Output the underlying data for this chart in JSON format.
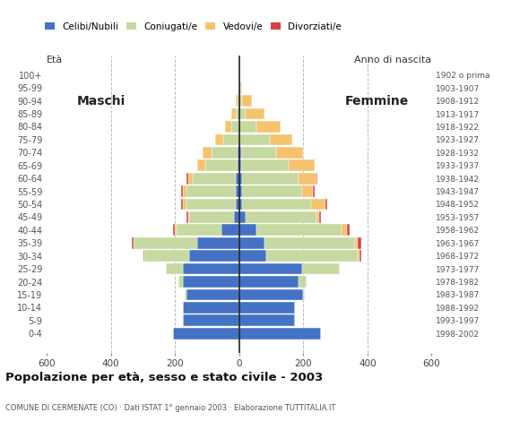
{
  "age_groups": [
    "0-4",
    "5-9",
    "10-14",
    "15-19",
    "20-24",
    "25-29",
    "30-34",
    "35-39",
    "40-44",
    "45-49",
    "50-54",
    "55-59",
    "60-64",
    "65-69",
    "70-74",
    "75-79",
    "80-84",
    "85-89",
    "90-94",
    "95-99",
    "100+"
  ],
  "birth_years": [
    "1998-2002",
    "1993-1997",
    "1988-1992",
    "1983-1987",
    "1978-1982",
    "1973-1977",
    "1968-1972",
    "1963-1967",
    "1958-1962",
    "1953-1957",
    "1948-1952",
    "1943-1947",
    "1938-1942",
    "1933-1937",
    "1928-1932",
    "1923-1927",
    "1918-1922",
    "1913-1917",
    "1908-1912",
    "1903-1907",
    "1902 o prima"
  ],
  "males": {
    "celibe": [
      205,
      175,
      175,
      165,
      175,
      175,
      155,
      130,
      55,
      15,
      10,
      10,
      10,
      5,
      5,
      0,
      0,
      0,
      0,
      0,
      0
    ],
    "coniugato": [
      0,
      0,
      0,
      5,
      15,
      55,
      140,
      200,
      140,
      140,
      155,
      155,
      135,
      100,
      80,
      50,
      25,
      10,
      5,
      0,
      0
    ],
    "vedovo": [
      0,
      0,
      0,
      0,
      0,
      0,
      0,
      0,
      5,
      5,
      10,
      10,
      15,
      25,
      30,
      25,
      20,
      15,
      5,
      0,
      0
    ],
    "divorziato": [
      0,
      0,
      0,
      0,
      0,
      0,
      5,
      5,
      5,
      5,
      5,
      5,
      5,
      0,
      0,
      0,
      0,
      0,
      0,
      0,
      0
    ]
  },
  "females": {
    "nubile": [
      255,
      175,
      175,
      200,
      185,
      195,
      85,
      80,
      55,
      20,
      10,
      10,
      10,
      5,
      5,
      0,
      0,
      0,
      0,
      0,
      0
    ],
    "coniugata": [
      0,
      0,
      0,
      5,
      25,
      120,
      285,
      280,
      265,
      220,
      215,
      185,
      175,
      150,
      110,
      95,
      55,
      20,
      10,
      5,
      0
    ],
    "vedova": [
      0,
      0,
      0,
      0,
      0,
      0,
      5,
      10,
      15,
      10,
      45,
      35,
      55,
      80,
      85,
      70,
      75,
      60,
      30,
      5,
      0
    ],
    "divorziata": [
      0,
      0,
      0,
      0,
      0,
      0,
      5,
      10,
      10,
      5,
      5,
      5,
      5,
      0,
      0,
      0,
      0,
      0,
      0,
      0,
      0
    ]
  },
  "colors": {
    "celibe": "#4472C4",
    "coniugato": "#C5D9A0",
    "vedovo": "#F5C36E",
    "divorziato": "#D94040"
  },
  "legend_labels": [
    "Celibi/Nubili",
    "Coniugati/e",
    "Vedovi/e",
    "Divorziati/e"
  ],
  "title": "Popolazione per età, sesso e stato civile - 2003",
  "subtitle": "COMUNE DI CERMENATE (CO) · Dati ISTAT 1° gennaio 2003 · Elaborazione TUTTITALIA.IT",
  "ylabel_left": "Età",
  "ylabel_right": "Anno di nascita",
  "xlim": 600,
  "bg_color": "#FFFFFF",
  "grid_color": "#BBBBBB"
}
